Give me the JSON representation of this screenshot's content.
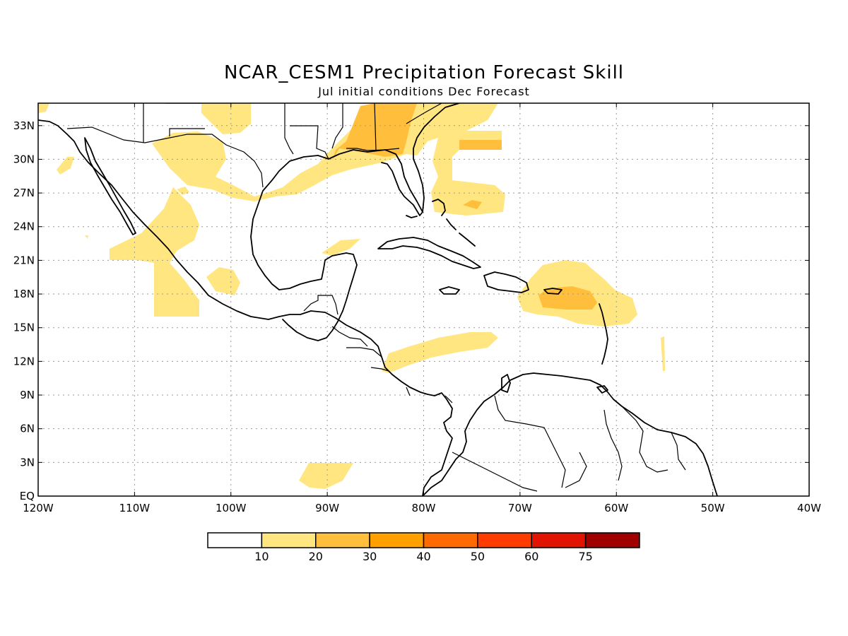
{
  "title": "NCAR_CESM1 Precipitation Forecast Skill",
  "subtitle": "Jul initial conditions  Dec Forecast",
  "map": {
    "lon_range": [
      -120,
      -40
    ],
    "lat_range": [
      0,
      35
    ],
    "x_tick_labels": [
      "120W",
      "110W",
      "100W",
      "90W",
      "80W",
      "70W",
      "60W",
      "50W",
      "40W"
    ],
    "y_tick_labels": [
      "EQ",
      "3N",
      "6N",
      "9N",
      "12N",
      "15N",
      "18N",
      "21N",
      "24N",
      "27N",
      "30N",
      "33N"
    ],
    "grid": "dotted"
  },
  "colorbar": {
    "colors": [
      "#ffffff",
      "#ffe680",
      "#ffbf3c",
      "#ffa000",
      "#ff6a00",
      "#ff3c00",
      "#e01400",
      "#a00000"
    ],
    "labels": [
      "10",
      "20",
      "30",
      "40",
      "50",
      "60",
      "75"
    ]
  },
  "skill_regions": {
    "level_10_color": "#ffe680",
    "level_20_color": "#ffbf3c"
  }
}
